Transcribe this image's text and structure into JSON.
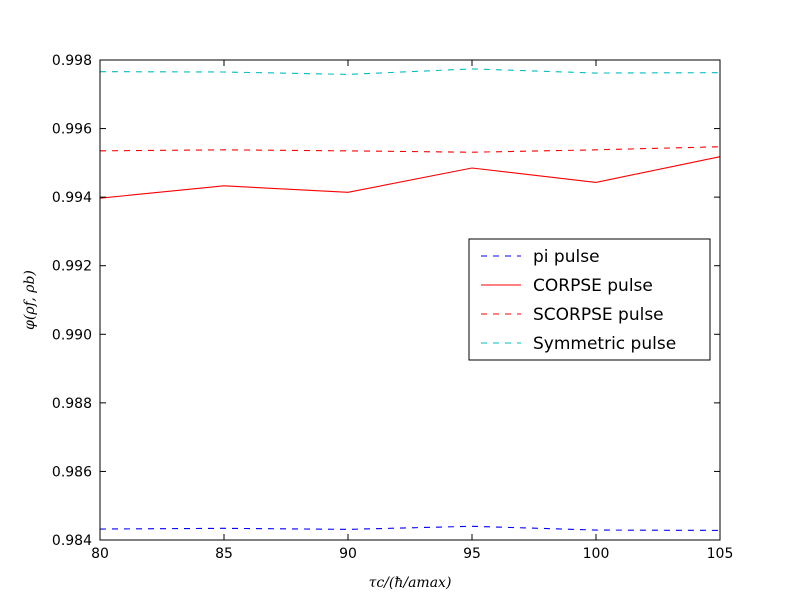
{
  "chart_data": {
    "type": "line",
    "title": "",
    "xlabel": "τc/(ħ/amax)",
    "ylabel": "φ(ρf, ρb)",
    "x": [
      80,
      85,
      90,
      95,
      100,
      105
    ],
    "xlim": [
      80,
      105
    ],
    "ylim": [
      0.984,
      0.998
    ],
    "x_ticks": [
      "80",
      "85",
      "90",
      "95",
      "100",
      "105"
    ],
    "y_ticks": [
      "0.984",
      "0.986",
      "0.988",
      "0.990",
      "0.992",
      "0.994",
      "0.996",
      "0.998"
    ],
    "grid": false,
    "legend_position": "center-right",
    "series": [
      {
        "name": "pi pulse",
        "color": "#0000ff",
        "style": "dashed",
        "values": [
          0.98432,
          0.98434,
          0.98431,
          0.9844,
          0.98429,
          0.98428
        ]
      },
      {
        "name": "CORPSE pulse",
        "color": "#ff0000",
        "style": "solid",
        "values": [
          0.99397,
          0.99433,
          0.99414,
          0.99485,
          0.99443,
          0.99518
        ]
      },
      {
        "name": "SCORPSE pulse",
        "color": "#ff0000",
        "style": "dashed",
        "values": [
          0.99535,
          0.99538,
          0.99535,
          0.99531,
          0.99538,
          0.99547
        ]
      },
      {
        "name": "Symmetric pulse",
        "color": "#00bfbf",
        "style": "dashed",
        "values": [
          0.99766,
          0.99765,
          0.99758,
          0.99774,
          0.99762,
          0.99763
        ]
      }
    ]
  }
}
